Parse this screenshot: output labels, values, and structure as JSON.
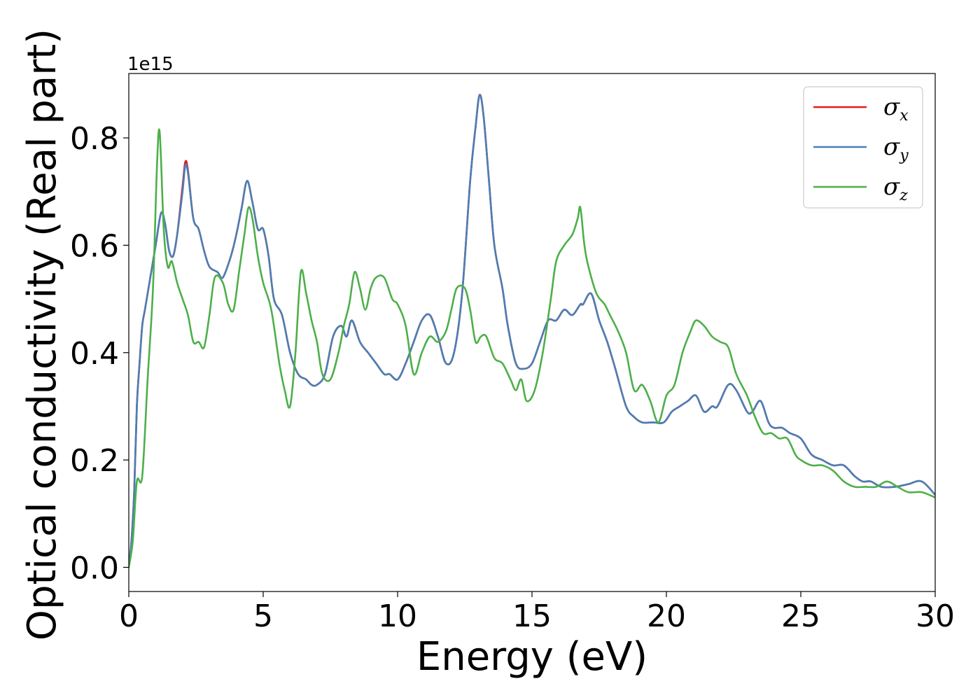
{
  "chart_data": {
    "type": "line",
    "xlabel": "Energy (eV)",
    "ylabel": "Optical conductivity (Real part)",
    "y_offset_text": "1e15",
    "xlim": [
      0,
      30
    ],
    "ylim": [
      -0.045,
      0.92
    ],
    "x_ticks": [
      0,
      5,
      10,
      15,
      20,
      25,
      30
    ],
    "x_tick_labels": [
      "0",
      "5",
      "10",
      "15",
      "20",
      "25",
      "30"
    ],
    "y_ticks": [
      0.0,
      0.2,
      0.4,
      0.6,
      0.8
    ],
    "y_tick_labels": [
      "0.0",
      "0.2",
      "0.4",
      "0.6",
      "0.8"
    ],
    "grid": false,
    "legend_position": "top-right",
    "series": [
      {
        "name": "σx",
        "symbol": "σ",
        "subscript": "x",
        "color": "#e41a1c",
        "x": [
          0,
          0.1,
          0.2,
          0.3,
          0.4,
          0.5,
          0.6,
          0.8,
          1.0,
          1.2,
          1.35,
          1.5,
          1.65,
          1.8,
          2.0,
          2.1,
          2.2,
          2.4,
          2.6,
          2.8,
          3.0,
          3.3,
          3.5,
          3.8,
          4.0,
          4.2,
          4.4,
          4.6,
          4.8,
          5.0,
          5.2,
          5.4,
          5.7,
          6.0,
          6.3,
          6.6,
          6.8,
          7.0,
          7.3,
          7.6,
          7.9,
          8.1,
          8.3,
          8.6,
          8.9,
          9.2,
          9.5,
          9.7,
          10.0,
          10.3,
          10.6,
          10.9,
          11.2,
          11.5,
          11.8,
          12.1,
          12.4,
          12.7,
          12.9,
          13.05,
          13.2,
          13.4,
          13.6,
          13.9,
          14.1,
          14.4,
          14.7,
          15.0,
          15.3,
          15.6,
          15.9,
          16.2,
          16.5,
          16.8,
          16.9,
          17.2,
          17.5,
          17.8,
          18.1,
          18.5,
          18.8,
          19.1,
          19.5,
          19.9,
          20.2,
          20.5,
          20.8,
          21.1,
          21.4,
          21.7,
          21.9,
          22.3,
          22.6,
          23.0,
          23.2,
          23.5,
          23.8,
          24.0,
          24.3,
          24.6,
          25.0,
          25.4,
          25.8,
          26.2,
          26.6,
          27.0,
          27.3,
          27.6,
          28.0,
          28.5,
          29.0,
          29.5,
          30.0
        ],
        "y": [
          0.0,
          0.05,
          0.14,
          0.3,
          0.38,
          0.45,
          0.48,
          0.54,
          0.6,
          0.66,
          0.64,
          0.59,
          0.58,
          0.62,
          0.71,
          0.755,
          0.74,
          0.65,
          0.63,
          0.59,
          0.56,
          0.55,
          0.54,
          0.58,
          0.62,
          0.67,
          0.72,
          0.68,
          0.63,
          0.63,
          0.58,
          0.5,
          0.47,
          0.4,
          0.36,
          0.35,
          0.34,
          0.34,
          0.36,
          0.43,
          0.45,
          0.43,
          0.46,
          0.42,
          0.4,
          0.38,
          0.36,
          0.36,
          0.35,
          0.38,
          0.42,
          0.46,
          0.47,
          0.43,
          0.38,
          0.4,
          0.51,
          0.72,
          0.82,
          0.88,
          0.84,
          0.72,
          0.6,
          0.52,
          0.45,
          0.38,
          0.37,
          0.38,
          0.42,
          0.46,
          0.46,
          0.48,
          0.47,
          0.49,
          0.49,
          0.51,
          0.46,
          0.42,
          0.37,
          0.3,
          0.28,
          0.27,
          0.27,
          0.27,
          0.29,
          0.3,
          0.31,
          0.32,
          0.29,
          0.3,
          0.3,
          0.34,
          0.33,
          0.29,
          0.29,
          0.31,
          0.27,
          0.26,
          0.26,
          0.25,
          0.24,
          0.21,
          0.2,
          0.19,
          0.19,
          0.17,
          0.16,
          0.16,
          0.15,
          0.15,
          0.155,
          0.16,
          0.135
        ]
      },
      {
        "name": "σy",
        "symbol": "σ",
        "subscript": "y",
        "color": "#4a7fb5",
        "x": [
          0,
          0.1,
          0.2,
          0.3,
          0.4,
          0.5,
          0.6,
          0.8,
          1.0,
          1.2,
          1.35,
          1.5,
          1.65,
          1.8,
          2.0,
          2.1,
          2.2,
          2.4,
          2.6,
          2.8,
          3.0,
          3.3,
          3.5,
          3.8,
          4.0,
          4.2,
          4.4,
          4.6,
          4.8,
          5.0,
          5.2,
          5.4,
          5.7,
          6.0,
          6.3,
          6.6,
          6.8,
          7.0,
          7.3,
          7.6,
          7.9,
          8.1,
          8.3,
          8.6,
          8.9,
          9.2,
          9.5,
          9.7,
          10.0,
          10.3,
          10.6,
          10.9,
          11.2,
          11.5,
          11.8,
          12.1,
          12.4,
          12.7,
          12.9,
          13.05,
          13.2,
          13.4,
          13.6,
          13.9,
          14.1,
          14.4,
          14.7,
          15.0,
          15.3,
          15.6,
          15.9,
          16.2,
          16.5,
          16.8,
          16.9,
          17.2,
          17.5,
          17.8,
          18.1,
          18.5,
          18.8,
          19.1,
          19.5,
          19.9,
          20.2,
          20.5,
          20.8,
          21.1,
          21.4,
          21.7,
          21.9,
          22.3,
          22.6,
          23.0,
          23.2,
          23.5,
          23.8,
          24.0,
          24.3,
          24.6,
          25.0,
          25.4,
          25.8,
          26.2,
          26.6,
          27.0,
          27.3,
          27.6,
          28.0,
          28.5,
          29.0,
          29.5,
          30.0
        ],
        "y": [
          0.0,
          0.05,
          0.14,
          0.3,
          0.38,
          0.45,
          0.48,
          0.54,
          0.6,
          0.66,
          0.64,
          0.59,
          0.58,
          0.62,
          0.7,
          0.748,
          0.735,
          0.65,
          0.63,
          0.59,
          0.56,
          0.55,
          0.54,
          0.58,
          0.62,
          0.67,
          0.72,
          0.68,
          0.63,
          0.63,
          0.58,
          0.5,
          0.47,
          0.4,
          0.36,
          0.35,
          0.34,
          0.34,
          0.36,
          0.43,
          0.45,
          0.43,
          0.46,
          0.42,
          0.4,
          0.38,
          0.36,
          0.36,
          0.35,
          0.38,
          0.42,
          0.46,
          0.47,
          0.43,
          0.38,
          0.4,
          0.51,
          0.72,
          0.82,
          0.88,
          0.84,
          0.72,
          0.6,
          0.52,
          0.45,
          0.38,
          0.37,
          0.38,
          0.42,
          0.46,
          0.46,
          0.48,
          0.47,
          0.49,
          0.49,
          0.51,
          0.46,
          0.42,
          0.37,
          0.3,
          0.28,
          0.27,
          0.27,
          0.27,
          0.29,
          0.3,
          0.31,
          0.32,
          0.29,
          0.3,
          0.3,
          0.34,
          0.33,
          0.29,
          0.29,
          0.31,
          0.27,
          0.26,
          0.26,
          0.25,
          0.24,
          0.21,
          0.2,
          0.19,
          0.19,
          0.17,
          0.16,
          0.16,
          0.15,
          0.15,
          0.155,
          0.16,
          0.135
        ]
      },
      {
        "name": "σz",
        "symbol": "σ",
        "subscript": "z",
        "color": "#4daf4a",
        "x": [
          0,
          0.15,
          0.3,
          0.5,
          0.7,
          0.9,
          1.05,
          1.15,
          1.3,
          1.45,
          1.6,
          1.8,
          2.0,
          2.2,
          2.4,
          2.6,
          2.8,
          3.0,
          3.2,
          3.5,
          3.7,
          3.9,
          4.1,
          4.3,
          4.45,
          4.6,
          4.8,
          5.0,
          5.3,
          5.6,
          5.8,
          6.0,
          6.2,
          6.4,
          6.6,
          6.8,
          7.0,
          7.2,
          7.5,
          7.8,
          8.0,
          8.2,
          8.4,
          8.6,
          8.8,
          9.0,
          9.2,
          9.5,
          9.8,
          10.0,
          10.3,
          10.6,
          10.9,
          11.2,
          11.5,
          11.8,
          12.0,
          12.2,
          12.5,
          12.7,
          12.9,
          13.1,
          13.3,
          13.6,
          13.9,
          14.2,
          14.4,
          14.6,
          14.8,
          15.1,
          15.4,
          15.7,
          15.9,
          16.2,
          16.5,
          16.7,
          16.8,
          16.95,
          17.1,
          17.4,
          17.7,
          17.9,
          18.2,
          18.5,
          18.8,
          19.1,
          19.4,
          19.7,
          20.0,
          20.3,
          20.6,
          20.9,
          21.1,
          21.4,
          21.7,
          22.0,
          22.3,
          22.6,
          23.0,
          23.3,
          23.6,
          23.9,
          24.2,
          24.5,
          24.8,
          25.0,
          25.4,
          25.8,
          26.2,
          26.6,
          27.0,
          27.4,
          27.8,
          28.2,
          28.6,
          29.0,
          29.5,
          30.0
        ],
        "y": [
          0.0,
          0.05,
          0.16,
          0.17,
          0.35,
          0.52,
          0.75,
          0.81,
          0.63,
          0.56,
          0.57,
          0.53,
          0.5,
          0.47,
          0.42,
          0.42,
          0.41,
          0.47,
          0.54,
          0.53,
          0.49,
          0.48,
          0.55,
          0.62,
          0.67,
          0.65,
          0.58,
          0.53,
          0.48,
          0.38,
          0.33,
          0.3,
          0.4,
          0.55,
          0.51,
          0.46,
          0.42,
          0.36,
          0.35,
          0.4,
          0.45,
          0.49,
          0.55,
          0.52,
          0.48,
          0.52,
          0.54,
          0.54,
          0.5,
          0.49,
          0.45,
          0.36,
          0.4,
          0.43,
          0.42,
          0.44,
          0.48,
          0.52,
          0.52,
          0.48,
          0.42,
          0.43,
          0.43,
          0.39,
          0.38,
          0.35,
          0.33,
          0.35,
          0.31,
          0.33,
          0.4,
          0.5,
          0.57,
          0.6,
          0.62,
          0.65,
          0.67,
          0.6,
          0.56,
          0.51,
          0.49,
          0.47,
          0.44,
          0.4,
          0.33,
          0.34,
          0.31,
          0.27,
          0.32,
          0.34,
          0.4,
          0.44,
          0.46,
          0.45,
          0.43,
          0.42,
          0.41,
          0.36,
          0.32,
          0.28,
          0.25,
          0.25,
          0.24,
          0.24,
          0.21,
          0.2,
          0.19,
          0.19,
          0.18,
          0.16,
          0.15,
          0.15,
          0.15,
          0.16,
          0.15,
          0.14,
          0.14,
          0.13
        ]
      }
    ]
  }
}
